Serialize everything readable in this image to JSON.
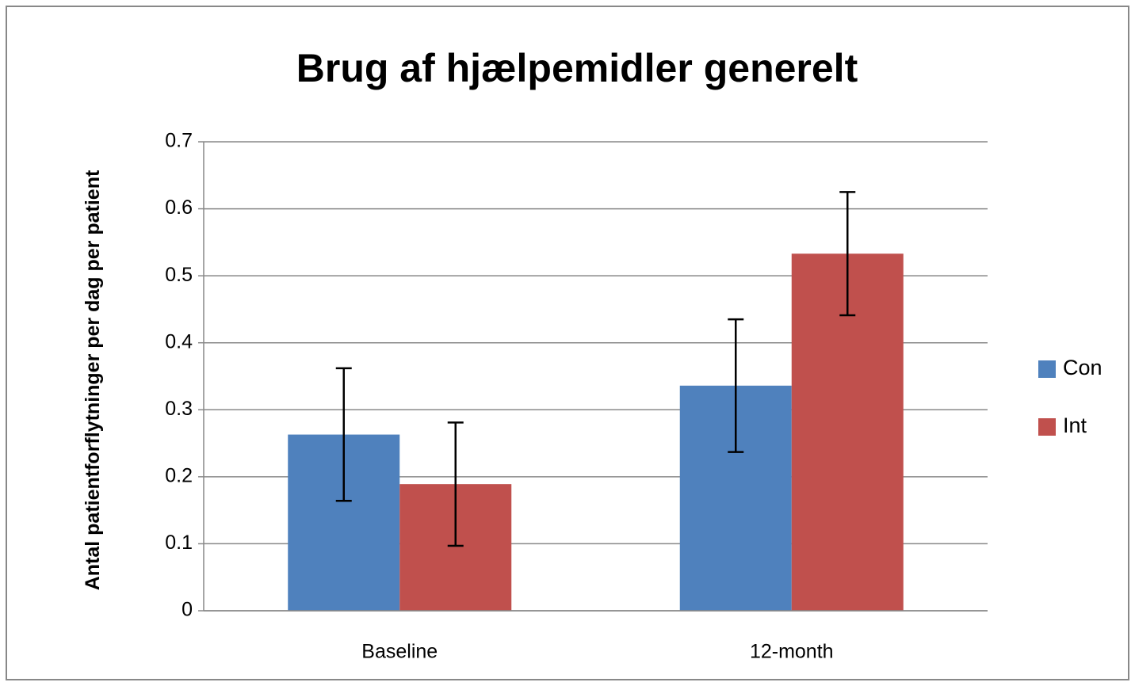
{
  "chart_data": {
    "type": "bar",
    "title": "Brug af hjælpemidler generelt",
    "y_label": "Antal patientforflytninger per dag per patient",
    "categories": [
      "Baseline",
      "12-month"
    ],
    "series": [
      {
        "name": "Con",
        "color": "#4f81bd",
        "values": [
          0.263,
          0.336
        ],
        "errors": [
          0.099,
          0.099
        ]
      },
      {
        "name": "Int",
        "color": "#c0504d",
        "values": [
          0.189,
          0.533
        ],
        "errors": [
          0.092,
          0.092
        ]
      }
    ],
    "ylim": [
      0,
      0.7
    ],
    "yticks": [
      0,
      0.1,
      0.2,
      0.3,
      0.4,
      0.5,
      0.6,
      0.7
    ],
    "grid": true,
    "legend": "right"
  }
}
